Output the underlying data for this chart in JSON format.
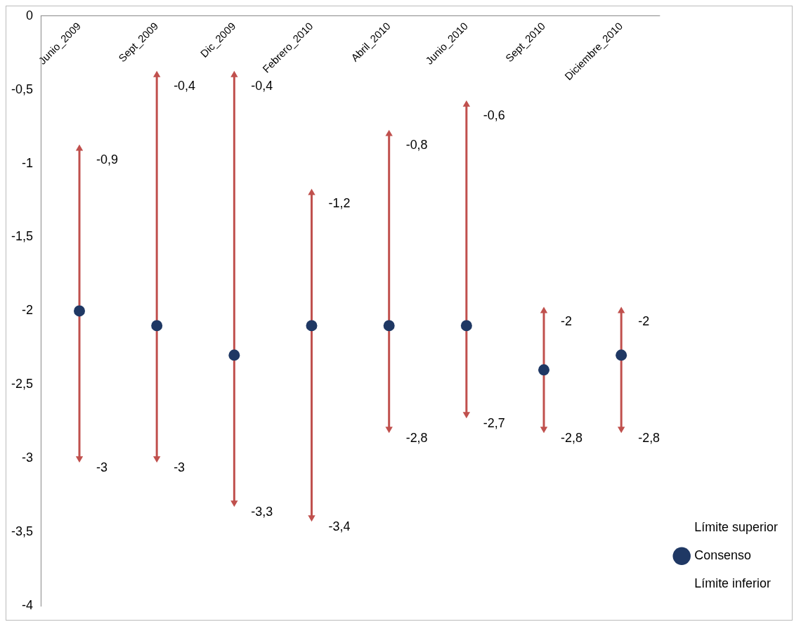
{
  "chart_data": {
    "type": "scatter",
    "categories": [
      "Junio_2009",
      "Sept_2009",
      "Dic_2009",
      "Febrero_2010",
      "Abril_2010",
      "Junio_2010",
      "Sept_2010",
      "Diciembre_2010"
    ],
    "ylim": [
      -4,
      0
    ],
    "yticks": [
      0,
      {
        "value": -0.5,
        "label": "-0,5"
      },
      -1,
      {
        "value": -1.5,
        "label": "-1,5"
      },
      -2,
      {
        "value": -2.5,
        "label": "-2,5"
      },
      -3,
      {
        "value": -3.5,
        "label": "-3,5"
      },
      -4
    ],
    "grid": false,
    "legend": "bottom right",
    "series": [
      {
        "name": "Límite superior",
        "color": "#c0504d",
        "marker": "triangle",
        "values": [
          -0.9,
          -0.4,
          -0.4,
          -1.2,
          -0.8,
          -0.6,
          -2,
          -2
        ],
        "value_labels": [
          "-0,9",
          "-0,4",
          "-0,4",
          "-1,2",
          "-0,8",
          "-0,6",
          "-2",
          "-2"
        ]
      },
      {
        "name": "Consenso",
        "color": "#1f3864",
        "marker": "circle",
        "values": [
          -2,
          -2.1,
          -2.3,
          -2.1,
          -2.1,
          -2.1,
          -2.4,
          -2.3
        ]
      },
      {
        "name": "Límite inferior",
        "color": "#c0504d",
        "marker": "triangle",
        "values": [
          -3,
          -3,
          -3.3,
          -3.4,
          -2.8,
          -2.7,
          -2.8,
          -2.8
        ],
        "value_labels": [
          "-3",
          "-3",
          "-3,3",
          "-3,4",
          "-2,8",
          "-2,7",
          "-2,8",
          "-2,8"
        ]
      }
    ]
  }
}
